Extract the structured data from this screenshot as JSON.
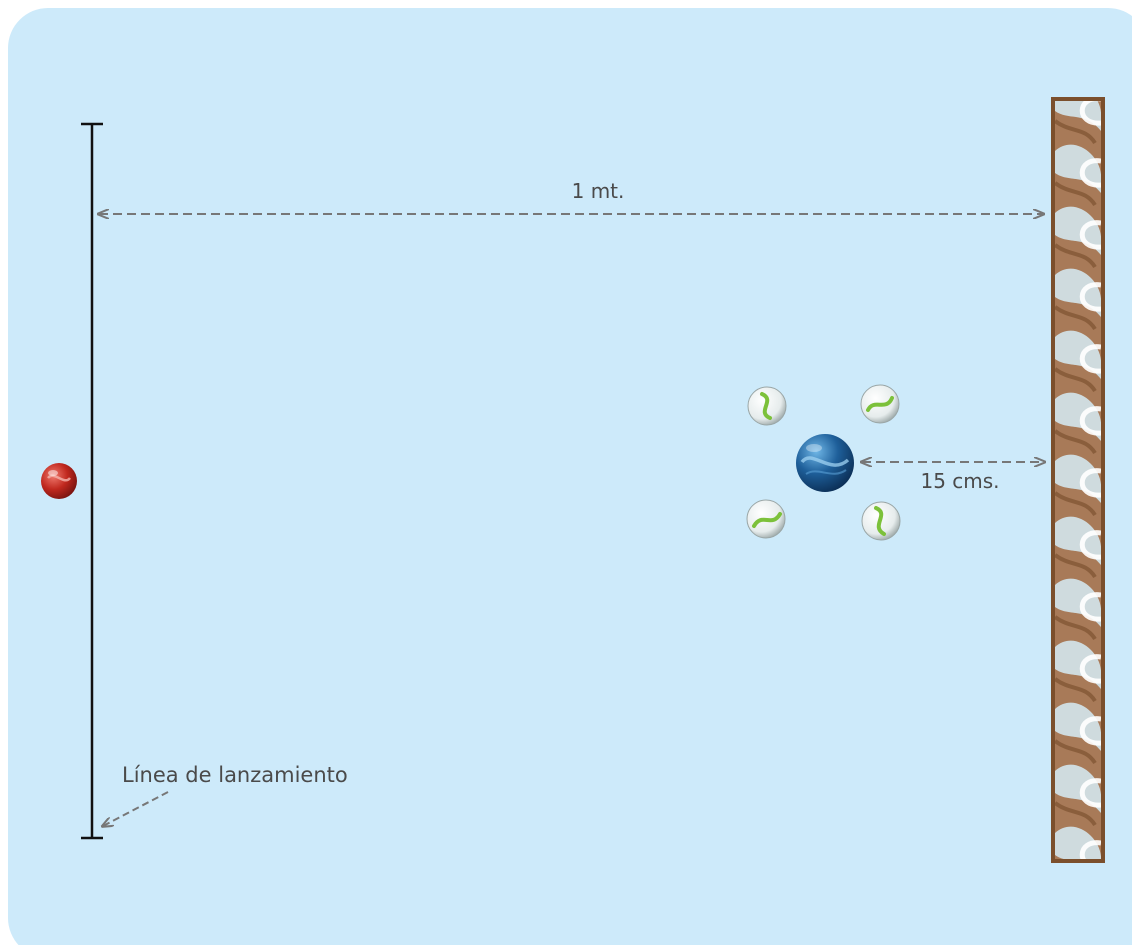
{
  "labels": {
    "distance_launch_to_wall": "1 mt.",
    "distance_marble_to_wall": "15 cms.",
    "launch_line": "Línea de lanzamiento"
  },
  "colors": {
    "background": "#cdeafa",
    "launch_line": "#111111",
    "dimension_arrows": "#777777",
    "label_text": "#4a4a4a",
    "wall_frame": "#7b4f2c",
    "wall_fill": "#a87a58",
    "shooter_marble": "#c0281e",
    "target_marble": "#1e5f9a",
    "surrounding_marbles": "#eef2f2",
    "surrounding_marble_swirl": "#7cc13a"
  },
  "objects": {
    "shooter_marble": "red marble on launch line",
    "target_marble": "blue marble",
    "surrounding_marbles_count": 4,
    "wall": "brown decorative wall"
  }
}
